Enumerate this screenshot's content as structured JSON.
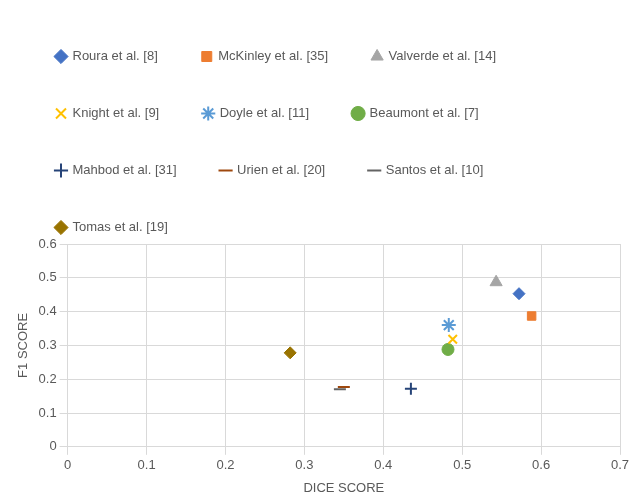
{
  "chart_data": {
    "type": "scatter",
    "x_label": "DICE SCORE",
    "y_label": "F1 SCORE",
    "xlim": [
      0,
      0.7
    ],
    "xticks": [
      0,
      0.1,
      0.2,
      0.3,
      0.4,
      0.5,
      0.6,
      0.7
    ],
    "ylim": [
      0,
      0.6
    ],
    "yticks": [
      0,
      0.1,
      0.2,
      0.3,
      0.4,
      0.5,
      0.6
    ],
    "grid": true,
    "legend": "top",
    "series": [
      {
        "name": "Roura et al. [8]",
        "color": "#4472c4",
        "marker": "diamond",
        "x": [
          0.572
        ],
        "values": [
          0.453
        ]
      },
      {
        "name": "McKinley et al. [35]",
        "color": "#ed7d31",
        "marker": "square",
        "x": [
          0.588
        ],
        "values": [
          0.387
        ]
      },
      {
        "name": "Valverde et al. [14]",
        "color": "#a5a5a5",
        "marker": "triangle",
        "x": [
          0.543
        ],
        "values": [
          0.487
        ]
      },
      {
        "name": "Knight et al. [9]",
        "color": "#ffc000",
        "marker": "x",
        "x": [
          0.488
        ],
        "values": [
          0.318
        ]
      },
      {
        "name": "Doyle et al. [11]",
        "color": "#5b9bd5",
        "marker": "star",
        "x": [
          0.483
        ],
        "values": [
          0.36
        ]
      },
      {
        "name": "Beaumont et al. [7]",
        "color": "#70ad47",
        "marker": "circle",
        "x": [
          0.482
        ],
        "values": [
          0.288
        ]
      },
      {
        "name": "Mahbod et al. [31]",
        "color": "#264478",
        "marker": "plus",
        "x": [
          0.435
        ],
        "values": [
          0.172
        ]
      },
      {
        "name": "Urien et al. [20]",
        "color": "#9e480e",
        "marker": "dash",
        "x": [
          0.35
        ],
        "values": [
          0.177
        ]
      },
      {
        "name": "Santos et al. [10]",
        "color": "#636363",
        "marker": "dash",
        "x": [
          0.345
        ],
        "values": [
          0.17
        ]
      },
      {
        "name": "Tomas et al. [19]",
        "color": "#997300",
        "marker": "diamond",
        "x": [
          0.282
        ],
        "values": [
          0.278
        ]
      }
    ]
  }
}
